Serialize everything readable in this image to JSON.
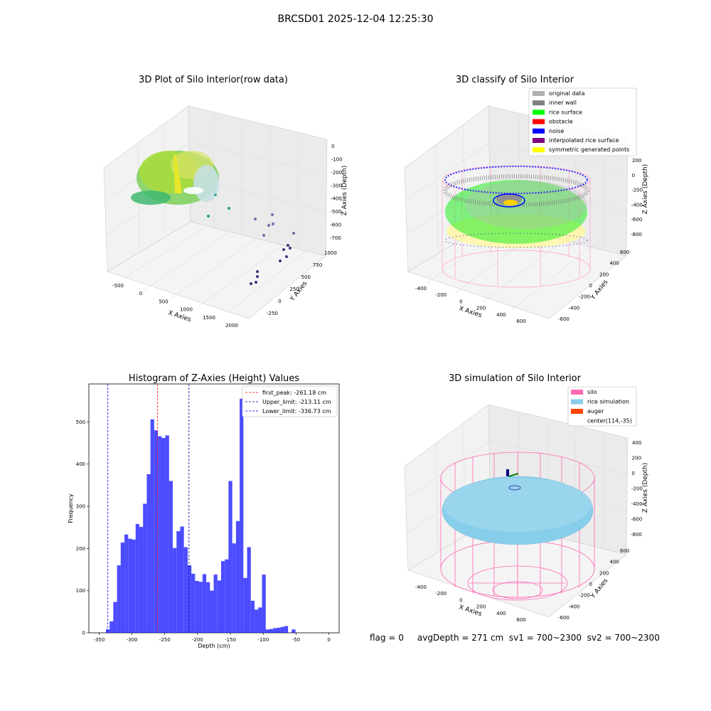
{
  "figure_title": "BRCSD01 2025-12-04 12:25:30",
  "panels": {
    "raw": {
      "title": "3D Plot of Silo Interior(row data)",
      "xlabel": "X Axies",
      "ylabel": "Y Axies",
      "zlabel": "Z Axies (Depth)",
      "xticks": [
        "-500",
        "0",
        "500",
        "1000",
        "1500",
        "2000"
      ],
      "yticks": [
        "-250",
        "0",
        "250",
        "500",
        "750",
        "1000"
      ],
      "zticks": [
        "0",
        "-100",
        "-200",
        "-300",
        "-400",
        "-500",
        "-600",
        "-700"
      ]
    },
    "classify": {
      "title": "3D classify of Silo Interior",
      "xlabel": "X Axies",
      "ylabel": "Y Axies",
      "zlabel": "Z Axies (Depth)",
      "xticks": [
        "-400",
        "-200",
        "0",
        "200",
        "400",
        "600"
      ],
      "yticks": [
        "-600",
        "-400",
        "-200",
        "0",
        "200",
        "400",
        "600"
      ],
      "zticks": [
        "200",
        "0",
        "-200",
        "-400",
        "-600",
        "-800"
      ],
      "legend": [
        {
          "label": "original data",
          "color": "#b0b0b0"
        },
        {
          "label": "inner wall",
          "color": "#808080"
        },
        {
          "label": "rice surface",
          "color": "#00ff00"
        },
        {
          "label": "obstacle",
          "color": "#ff0000"
        },
        {
          "label": "noise",
          "color": "#0000ff"
        },
        {
          "label": "interpolated rice surface",
          "color": "#800080"
        },
        {
          "label": "symmetric generated points",
          "color": "#ffff00"
        }
      ]
    },
    "simulation": {
      "title": "3D simulation of Silo Interior",
      "xlabel": "X Axies",
      "ylabel": "Y Axies",
      "zlabel": "Z Axies (Depth)",
      "xticks": [
        "-400",
        "-200",
        "0",
        "200",
        "400",
        "600"
      ],
      "yticks": [
        "-600",
        "-400",
        "-200",
        "0",
        "200",
        "400",
        "600"
      ],
      "zticks": [
        "400",
        "200",
        "0",
        "-200",
        "-400",
        "-600",
        "-800"
      ],
      "legend": [
        {
          "label": "silo",
          "color": "#ff69b4"
        },
        {
          "label": "rice simulation",
          "color": "#87ceeb"
        },
        {
          "label": "auger",
          "color": "#ff4500"
        },
        {
          "label": "center(114,-35)",
          "color": null
        }
      ]
    }
  },
  "status_line": "flag = 0     avgDepth = 271 cm  sv1 = 700~2300  sv2 = 700~2300",
  "chart_data": [
    {
      "type": "bar",
      "title": "Histogram of Z-Axies (Height) Values",
      "xlabel": "Depth (cm)",
      "ylabel": "Frequency",
      "xlim": [
        -350,
        0
      ],
      "ylim": [
        0,
        590
      ],
      "xticks": [
        -350,
        -300,
        -250,
        -200,
        -150,
        -100,
        -50,
        0
      ],
      "yticks": [
        0,
        100,
        200,
        300,
        400,
        500
      ],
      "bar_color": "#0000ff",
      "bin_width": 5.66,
      "bin_starts": [
        -339.7,
        -334.0,
        -328.4,
        -322.7,
        -317.1,
        -311.4,
        -305.7,
        -300.1,
        -294.4,
        -288.7,
        -283.1,
        -277.4,
        -271.8,
        -266.1,
        -260.4,
        -254.8,
        -249.1,
        -243.5,
        -237.8,
        -232.1,
        -226.5,
        -220.8,
        -215.1,
        -209.5,
        -203.8,
        -198.2,
        -192.5,
        -186.8,
        -181.2,
        -175.5,
        -169.8,
        -164.2,
        -158.5,
        -152.9,
        -147.2,
        -141.5,
        -135.9,
        -130.2,
        -124.6,
        -118.9,
        -113.2,
        -107.6,
        -101.9,
        -96.2,
        -90.6,
        -84.9,
        -79.3,
        -73.6,
        -67.9,
        -62.3,
        -56.6,
        -50.9,
        -45.3,
        -39.6,
        -34.0,
        -28.3,
        -22.6,
        -17.0,
        -11.3,
        -5.7
      ],
      "values": [
        8,
        27,
        73,
        160,
        214,
        233,
        223,
        221,
        258,
        251,
        306,
        376,
        506,
        480,
        466,
        462,
        468,
        360,
        201,
        241,
        252,
        203,
        160,
        140,
        123,
        121,
        139,
        120,
        100,
        138,
        124,
        170,
        174,
        360,
        212,
        265,
        555,
        130,
        203,
        76,
        55,
        60,
        138,
        8,
        9,
        11,
        12,
        14,
        16,
        0,
        8,
        0,
        0,
        0,
        0,
        0,
        0,
        0,
        0,
        0
      ],
      "reference_lines": [
        {
          "name": "first_peak: -261.18 cm",
          "value": -261.18,
          "color": "#ff0000"
        },
        {
          "name": "Upper_limit: -213.11 cm",
          "value": -213.11,
          "color": "#00008b"
        },
        {
          "name": "Lower_limit: -336.73 cm",
          "value": -336.73,
          "color": "#0000ff"
        }
      ],
      "legend_position": "top-right"
    }
  ]
}
